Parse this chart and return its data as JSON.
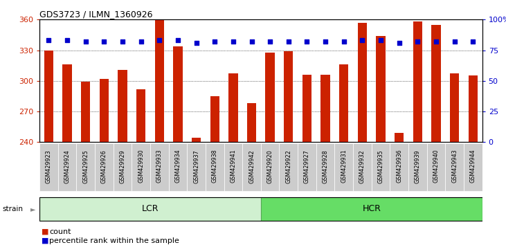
{
  "title": "GDS3723 / ILMN_1360926",
  "samples": [
    "GSM429923",
    "GSM429924",
    "GSM429925",
    "GSM429926",
    "GSM429929",
    "GSM429930",
    "GSM429933",
    "GSM429934",
    "GSM429937",
    "GSM429938",
    "GSM429941",
    "GSM429942",
    "GSM429920",
    "GSM429922",
    "GSM429927",
    "GSM429928",
    "GSM429931",
    "GSM429932",
    "GSM429935",
    "GSM429936",
    "GSM429939",
    "GSM429940",
    "GSM429943",
    "GSM429944"
  ],
  "counts": [
    330,
    316,
    299,
    302,
    311,
    292,
    360,
    334,
    244,
    285,
    307,
    278,
    328,
    329,
    306,
    306,
    316,
    357,
    344,
    249,
    358,
    355,
    307,
    305
  ],
  "percentile_ranks": [
    83,
    83,
    82,
    82,
    82,
    82,
    83,
    83,
    81,
    82,
    82,
    82,
    82,
    82,
    82,
    82,
    82,
    83,
    83,
    81,
    82,
    82,
    82,
    82
  ],
  "groups": [
    {
      "label": "LCR",
      "start": 0,
      "end": 12,
      "color": "#d0f0d0",
      "edge_color": "#55aa55"
    },
    {
      "label": "HCR",
      "start": 12,
      "end": 24,
      "color": "#66dd66",
      "edge_color": "#55aa55"
    }
  ],
  "bar_color": "#cc2200",
  "dot_color": "#0000cc",
  "ylim_left": [
    240,
    360
  ],
  "ylim_right": [
    0,
    100
  ],
  "yticks_left": [
    240,
    270,
    300,
    330,
    360
  ],
  "yticks_right": [
    0,
    25,
    50,
    75,
    100
  ],
  "yticklabels_right": [
    "0",
    "25",
    "50",
    "75",
    "100%"
  ],
  "grid_values": [
    270,
    300,
    330
  ],
  "tick_bg_color": "#cccccc",
  "background_color": "#ffffff"
}
